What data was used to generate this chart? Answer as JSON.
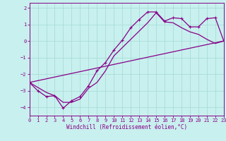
{
  "xlabel": "Windchill (Refroidissement éolien,°C)",
  "bg_color": "#c8f0ee",
  "grid_color": "#a8dcd8",
  "line_color": "#880088",
  "xlim": [
    0,
    23
  ],
  "ylim": [
    -4.5,
    2.3
  ],
  "xticks": [
    0,
    1,
    2,
    3,
    4,
    5,
    6,
    7,
    8,
    9,
    10,
    11,
    12,
    13,
    14,
    15,
    16,
    17,
    18,
    19,
    20,
    21,
    22,
    23
  ],
  "yticks": [
    -4,
    -3,
    -2,
    -1,
    0,
    1,
    2
  ],
  "line1_x": [
    0,
    1,
    2,
    3,
    4,
    5,
    6,
    7,
    8,
    9,
    10,
    11,
    12,
    13,
    14,
    15,
    16,
    17,
    18,
    19,
    20,
    21,
    22,
    23
  ],
  "line1_y": [
    -2.5,
    -3.0,
    -3.35,
    -3.3,
    -4.05,
    -3.6,
    -3.35,
    -2.7,
    -1.8,
    -1.3,
    -0.55,
    0.05,
    0.8,
    1.3,
    1.75,
    1.75,
    1.2,
    1.4,
    1.35,
    0.85,
    0.85,
    1.35,
    1.4,
    0.0
  ],
  "line2_x": [
    0,
    1,
    2,
    3,
    4,
    5,
    6,
    7,
    8,
    9,
    10,
    11,
    12,
    13,
    14,
    15,
    16,
    17,
    18,
    19,
    20,
    21,
    22,
    23
  ],
  "line2_y": [
    -2.5,
    -2.8,
    -3.1,
    -3.3,
    -3.7,
    -3.7,
    -3.5,
    -2.85,
    -2.5,
    -1.8,
    -0.9,
    -0.4,
    0.1,
    0.6,
    1.1,
    1.7,
    1.15,
    1.1,
    0.8,
    0.55,
    0.4,
    0.1,
    -0.15,
    0.0
  ],
  "line3_x": [
    0,
    23
  ],
  "line3_y": [
    -2.5,
    0.0
  ]
}
